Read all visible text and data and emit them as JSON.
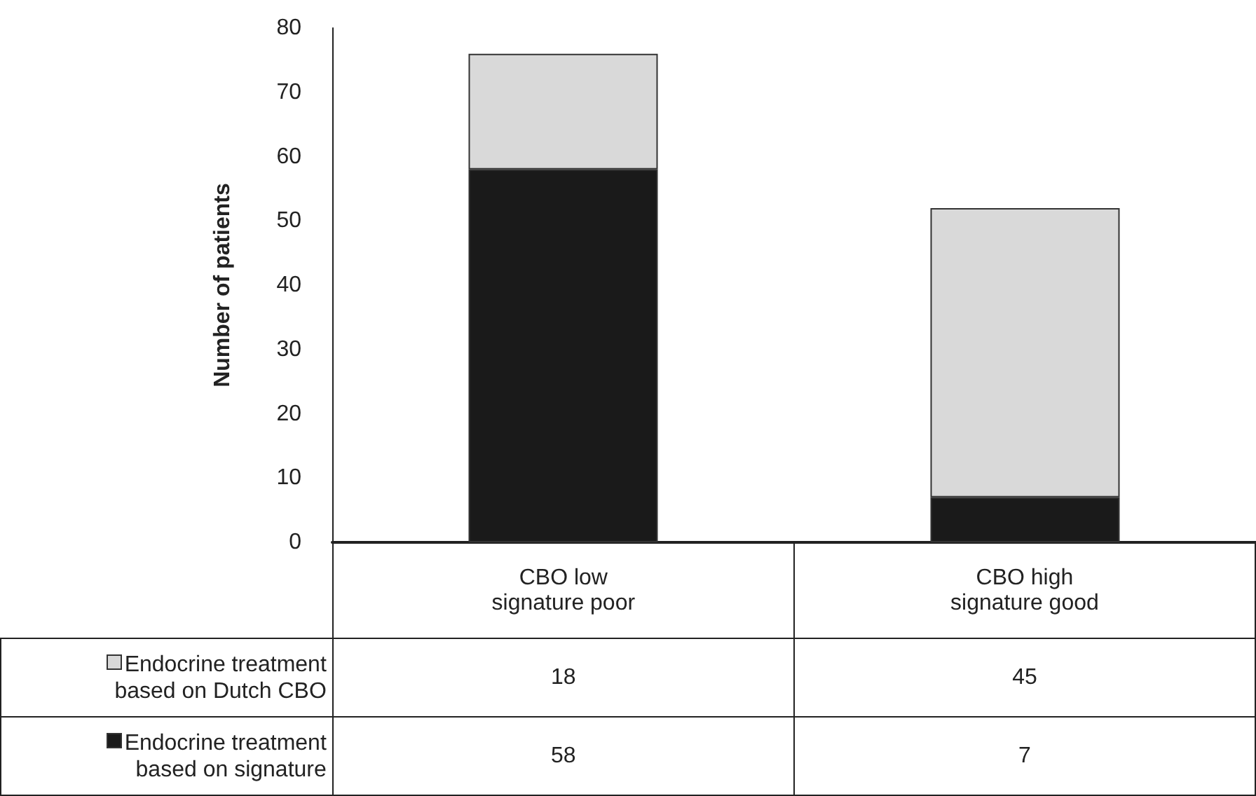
{
  "chart_data": {
    "type": "bar",
    "ylabel": "Number of patients",
    "categories": [
      "CBO low\nsignature poor",
      "CBO high\nsignature good"
    ],
    "series": [
      {
        "name": "Endocrine treatment based on signature",
        "color": "#1a1a1a",
        "values": [
          58,
          7
        ]
      },
      {
        "name": "Endocrine treatment based on Dutch CBO",
        "color": "#d9d9d9",
        "values": [
          18,
          45
        ]
      }
    ],
    "stacked": true,
    "ylim": [
      0,
      80
    ],
    "yticks": [
      0,
      10,
      20,
      30,
      40,
      50,
      60,
      70,
      80
    ],
    "grid": false,
    "legend": "bottom left",
    "data_labels": true
  }
}
